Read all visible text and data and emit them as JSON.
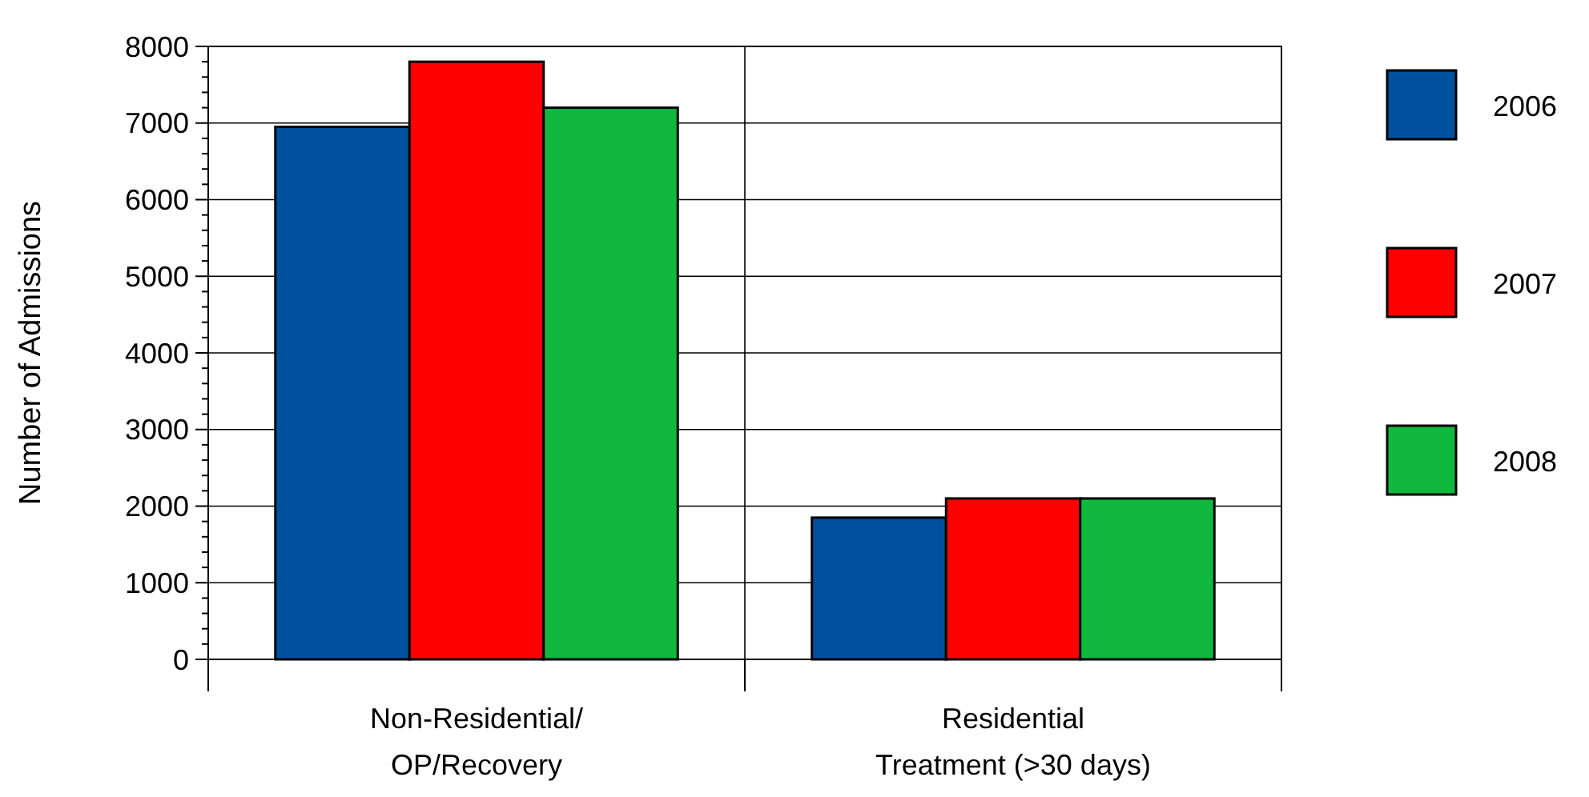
{
  "chart_data": {
    "type": "bar",
    "ylabel": "Number of Admissions",
    "categories": [
      "Non-Residential/\nOP/Recovery",
      "Residential\nTreatment (>30 days)"
    ],
    "series": [
      {
        "name": "2006",
        "color": "#0050a0",
        "values": [
          6950,
          1850
        ]
      },
      {
        "name": "2007",
        "color": "#ff0000",
        "values": [
          7800,
          2100
        ]
      },
      {
        "name": "2008",
        "color": "#10b840",
        "values": [
          7200,
          2100
        ]
      }
    ],
    "ylim": [
      0,
      8000
    ],
    "yticks": [
      0,
      {
        "value": 200,
        "label": null
      },
      {
        "value": 400,
        "label": null
      },
      {
        "value": 600,
        "label": null
      },
      {
        "value": 800,
        "label": null
      },
      1000,
      {
        "value": 1200,
        "label": null
      },
      {
        "value": 1400,
        "label": null
      },
      {
        "value": 1600,
        "label": null
      },
      {
        "value": 1800,
        "label": null
      },
      2000,
      {
        "value": 2200,
        "label": null
      },
      {
        "value": 2400,
        "label": null
      },
      {
        "value": 2600,
        "label": null
      },
      {
        "value": 2800,
        "label": null
      },
      3000,
      {
        "value": 3200,
        "label": null
      },
      {
        "value": 3400,
        "label": null
      },
      {
        "value": 3600,
        "label": null
      },
      {
        "value": 3800,
        "label": null
      },
      4000,
      {
        "value": 4200,
        "label": null
      },
      {
        "value": 4400,
        "label": null
      },
      {
        "value": 4600,
        "label": null
      },
      {
        "value": 4800,
        "label": null
      },
      5000,
      {
        "value": 5200,
        "label": null
      },
      {
        "value": 5400,
        "label": null
      },
      {
        "value": 5600,
        "label": null
      },
      {
        "value": 5800,
        "label": null
      },
      6000,
      {
        "value": 6200,
        "label": null
      },
      {
        "value": 6400,
        "label": null
      },
      {
        "value": 6600,
        "label": null
      },
      {
        "value": 6800,
        "label": null
      },
      7000,
      {
        "value": 7200,
        "label": null
      },
      {
        "value": 7400,
        "label": null
      },
      {
        "value": 7600,
        "label": null
      },
      {
        "value": 7800,
        "label": null
      },
      8000
    ],
    "grid": "y",
    "legend": "right"
  }
}
